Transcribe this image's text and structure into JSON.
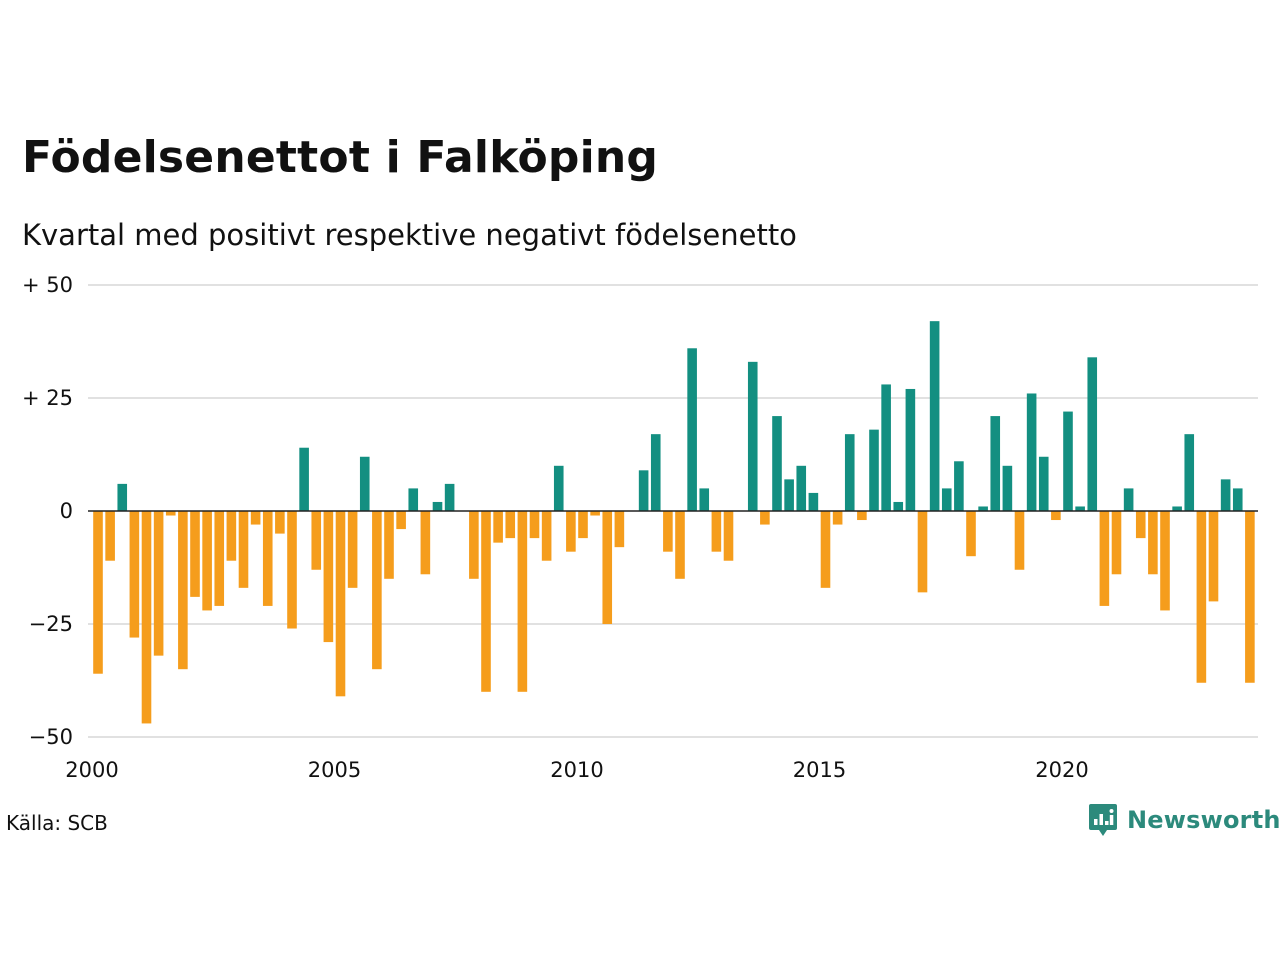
{
  "chart_data": {
    "type": "bar",
    "title": "Födelsenettot i Falköping",
    "subtitle": "Kvartal med positivt respektive negativt födelsenetto",
    "x_start": "2000Q1",
    "periods_per_year": 4,
    "x_tick_labels": [
      "2000",
      "2005",
      "2010",
      "2015",
      "2020"
    ],
    "y_ticks": [
      {
        "value": 50,
        "label": "+ 50"
      },
      {
        "value": 25,
        "label": "+ 25"
      },
      {
        "value": 0,
        "label": "0"
      },
      {
        "value": -25,
        "label": "−25"
      },
      {
        "value": -50,
        "label": "−50"
      }
    ],
    "ylim": [
      -50,
      50
    ],
    "grid": true,
    "colors": {
      "positive": "#138f81",
      "negative": "#f59d1c",
      "grid": "#e1e1e1"
    },
    "values": [
      -36,
      -11,
      6,
      -28,
      -47,
      -32,
      -1,
      -35,
      -19,
      -22,
      -21,
      -11,
      -17,
      -3,
      -21,
      -5,
      -26,
      14,
      -13,
      -29,
      -41,
      -17,
      12,
      -35,
      -15,
      -4,
      5,
      -14,
      2,
      6,
      0,
      -15,
      -40,
      -7,
      -6,
      -40,
      -6,
      -11,
      10,
      -9,
      -6,
      -1,
      -25,
      -8,
      0,
      9,
      17,
      -9,
      -15,
      36,
      5,
      -9,
      -11,
      0,
      33,
      -3,
      21,
      7,
      10,
      4,
      -17,
      -3,
      17,
      -2,
      18,
      28,
      2,
      27,
      -18,
      42,
      5,
      11,
      -10,
      1,
      21,
      10,
      -13,
      26,
      12,
      -2,
      22,
      1,
      34,
      -21,
      -14,
      5,
      -6,
      -14,
      -22,
      1,
      17,
      -38,
      -20,
      7,
      5,
      -38
    ]
  },
  "source": "Källa: SCB",
  "brand": {
    "name": "Newsworthy",
    "icon": "newsworthy-logo-icon"
  }
}
